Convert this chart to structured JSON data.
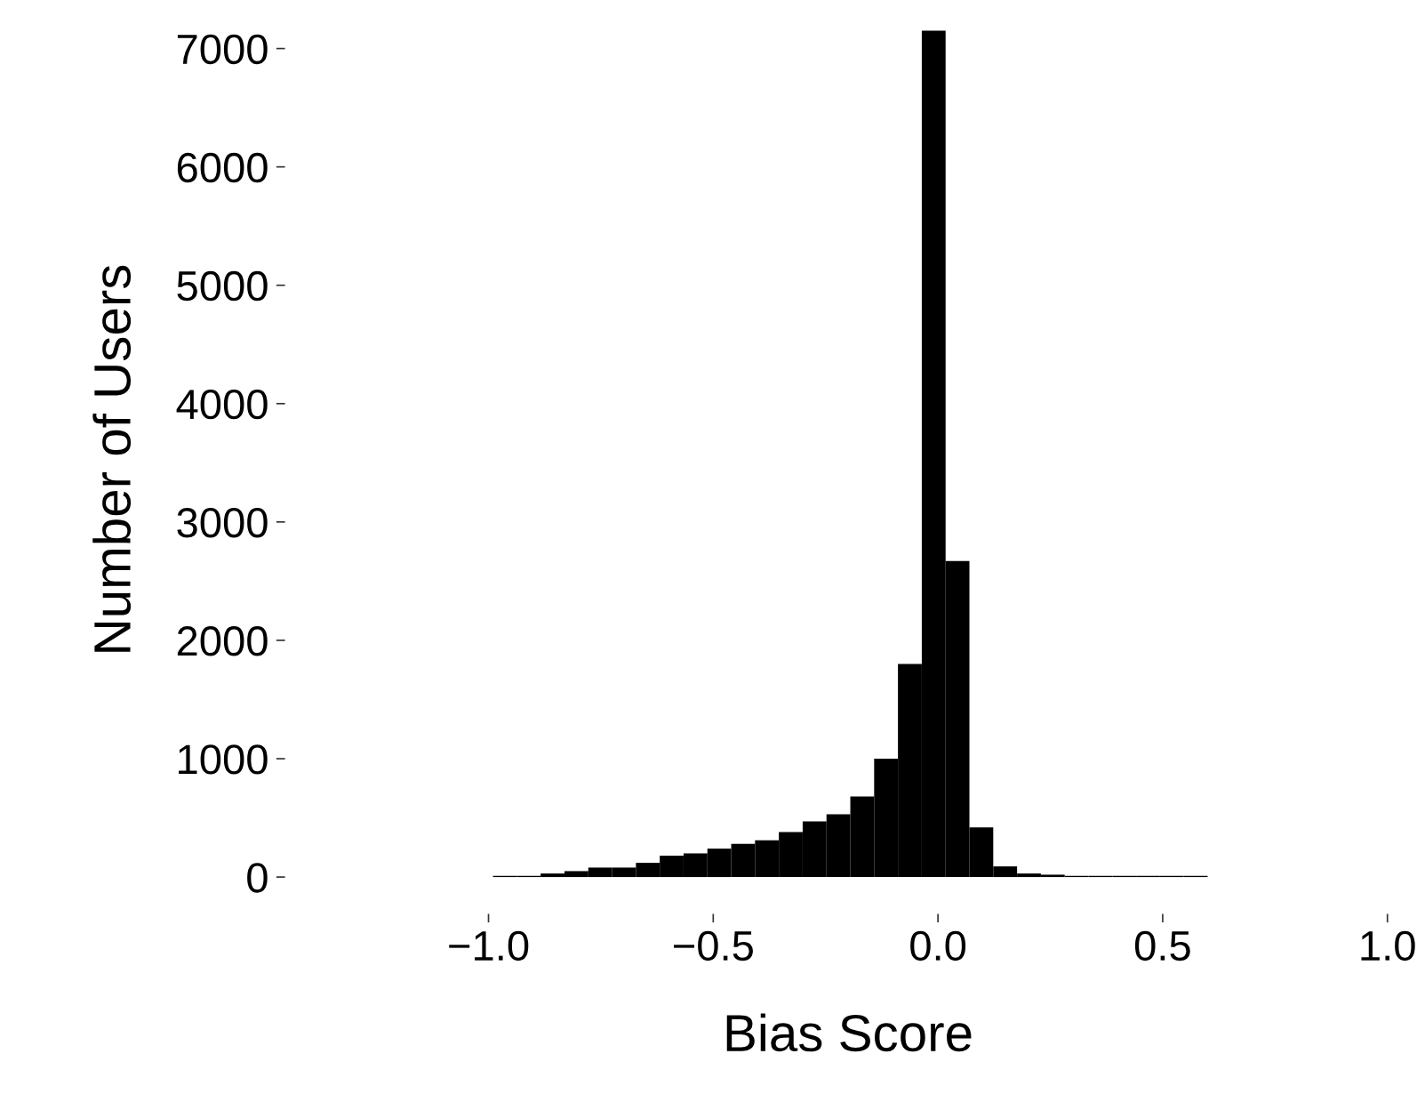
{
  "chart_data": {
    "type": "histogram",
    "xlabel": "Bias Score",
    "ylabel": "Number of Users",
    "color": "#000000",
    "bins": [
      -0.99,
      -0.937,
      -0.884,
      -0.831,
      -0.778,
      -0.725,
      -0.672,
      -0.619,
      -0.566,
      -0.513,
      -0.46,
      -0.407,
      -0.354,
      -0.301,
      -0.248,
      -0.195,
      -0.142,
      -0.089,
      -0.036,
      0.017,
      0.07,
      0.123,
      0.176,
      0.229,
      0.282,
      0.335,
      0.388,
      0.441,
      0.494,
      0.547,
      0.6
    ],
    "values": [
      10,
      10,
      30,
      50,
      80,
      80,
      120,
      180,
      200,
      240,
      280,
      310,
      380,
      470,
      530,
      680,
      1000,
      1800,
      7150,
      2670,
      420,
      90,
      30,
      20,
      10,
      10,
      10,
      10,
      10,
      10
    ],
    "xlim": [
      -1.45,
      1.05
    ],
    "xticks": [
      {
        "value": -1.0,
        "label": "−1.0"
      },
      {
        "value": -0.5,
        "label": "−0.5"
      },
      {
        "value": 0.0,
        "label": "0.0"
      },
      {
        "value": 0.5,
        "label": "0.5"
      },
      {
        "value": 1.0,
        "label": "1.0"
      }
    ],
    "ylim": [
      -300,
      7350
    ],
    "yticks": [
      0,
      1000,
      2000,
      3000,
      4000,
      5000,
      6000,
      7000
    ],
    "grid": false
  }
}
